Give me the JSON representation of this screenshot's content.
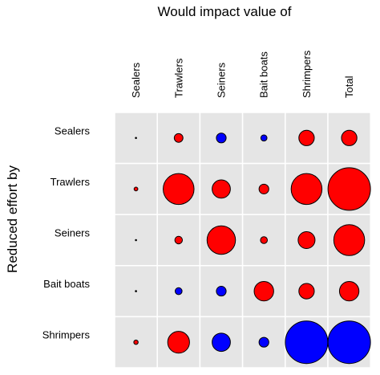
{
  "chart_data": {
    "type": "heatmap",
    "subtype": "balloon-matrix",
    "title": "Would impact value of",
    "ylabel": "Reduced effort by",
    "columns": [
      "Sealers",
      "Trawlers",
      "Seiners",
      "Bait boats",
      "Shrimpers",
      "Total"
    ],
    "rows": [
      "Sealers",
      "Trawlers",
      "Seiners",
      "Bait boats",
      "Shrimpers"
    ],
    "value_note": "relative impact magnitude, 0-1 scale (circle area); sign shown by color",
    "values": [
      [
        0.002,
        0.08,
        -0.1,
        -0.04,
        0.25,
        0.25
      ],
      [
        0.015,
        1.0,
        0.35,
        0.1,
        1.0,
        1.9
      ],
      [
        0.003,
        0.06,
        0.85,
        0.05,
        0.3,
        1.0
      ],
      [
        0.002,
        -0.05,
        -0.1,
        0.4,
        0.25,
        0.4
      ],
      [
        0.02,
        0.5,
        -0.35,
        -0.1,
        -1.9,
        -1.9
      ]
    ],
    "colors": {
      "positive": "#ff0000",
      "negative": "#0000ff",
      "cell": "#e5e5e5",
      "grid": "#ffffff",
      "stroke": "#000000"
    },
    "legend": "none",
    "grid": true
  }
}
